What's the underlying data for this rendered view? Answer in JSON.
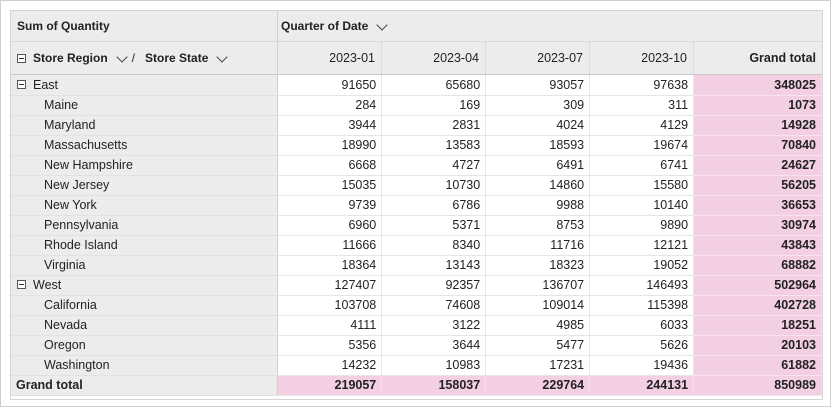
{
  "header": {
    "measure": "Sum of Quantity",
    "column_field": "Quarter of Date",
    "row_field_1": "Store Region",
    "separator": "/",
    "row_field_2": "Store State"
  },
  "columns": [
    "2023-01",
    "2023-04",
    "2023-07",
    "2023-10"
  ],
  "grand_total_label": "Grand total",
  "regions": [
    {
      "name": "East",
      "values": [
        "91650",
        "65680",
        "93057",
        "97638"
      ],
      "total": "348025",
      "states": [
        {
          "name": "Maine",
          "values": [
            "284",
            "169",
            "309",
            "311"
          ],
          "total": "1073"
        },
        {
          "name": "Maryland",
          "values": [
            "3944",
            "2831",
            "4024",
            "4129"
          ],
          "total": "14928"
        },
        {
          "name": "Massachusetts",
          "values": [
            "18990",
            "13583",
            "18593",
            "19674"
          ],
          "total": "70840"
        },
        {
          "name": "New Hampshire",
          "values": [
            "6668",
            "4727",
            "6491",
            "6741"
          ],
          "total": "24627"
        },
        {
          "name": "New Jersey",
          "values": [
            "15035",
            "10730",
            "14860",
            "15580"
          ],
          "total": "56205"
        },
        {
          "name": "New York",
          "values": [
            "9739",
            "6786",
            "9988",
            "10140"
          ],
          "total": "36653"
        },
        {
          "name": "Pennsylvania",
          "values": [
            "6960",
            "5371",
            "8753",
            "9890"
          ],
          "total": "30974"
        },
        {
          "name": "Rhode Island",
          "values": [
            "11666",
            "8340",
            "11716",
            "12121"
          ],
          "total": "43843"
        },
        {
          "name": "Virginia",
          "values": [
            "18364",
            "13143",
            "18323",
            "19052"
          ],
          "total": "68882"
        }
      ]
    },
    {
      "name": "West",
      "values": [
        "127407",
        "92357",
        "136707",
        "146493"
      ],
      "total": "502964",
      "states": [
        {
          "name": "California",
          "values": [
            "103708",
            "74608",
            "109014",
            "115398"
          ],
          "total": "402728"
        },
        {
          "name": "Nevada",
          "values": [
            "4111",
            "3122",
            "4985",
            "6033"
          ],
          "total": "18251"
        },
        {
          "name": "Oregon",
          "values": [
            "5356",
            "3644",
            "5477",
            "5626"
          ],
          "total": "20103"
        },
        {
          "name": "Washington",
          "values": [
            "14232",
            "10983",
            "17231",
            "19436"
          ],
          "total": "61882"
        }
      ]
    }
  ],
  "grand_total": {
    "values": [
      "219057",
      "158037",
      "229764",
      "244131"
    ],
    "total": "850989"
  },
  "colors": {
    "header_bg": "#ececec",
    "total_highlight": "#f2cfe3"
  }
}
